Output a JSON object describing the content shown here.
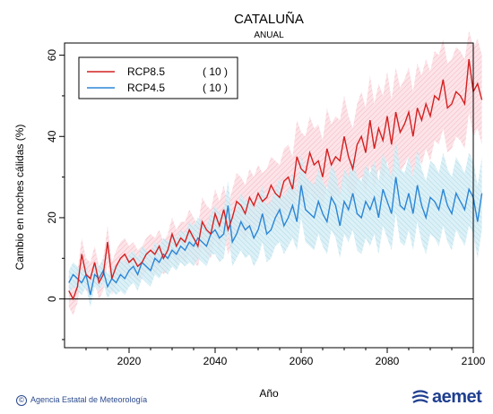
{
  "chart_data": {
    "type": "line",
    "title": "CATALUÑA",
    "subtitle": "ANUAL",
    "xlabel": "Año",
    "ylabel": "Cambio en noches cálidas (%)",
    "xlim": [
      2005,
      2100
    ],
    "ylim": [
      -12,
      63
    ],
    "xticks": [
      2020,
      2040,
      2060,
      2080,
      2100
    ],
    "yticks": [
      0,
      20,
      40,
      60
    ],
    "zero_line": true,
    "legend_position": "top-left",
    "x_start": 2006,
    "series": [
      {
        "name": "RCP8.5",
        "count_label": "( 10 )",
        "color": "#d42020",
        "band_color": "#f7c6cf",
        "values": [
          2,
          0,
          3,
          11,
          6,
          5,
          9,
          4,
          6,
          14,
          5,
          8,
          10,
          11,
          9,
          10,
          8,
          9,
          11,
          12,
          11,
          13,
          10,
          12,
          16,
          13,
          15,
          14,
          17,
          15,
          13,
          19,
          17,
          16,
          21,
          18,
          22,
          17,
          20,
          24,
          23,
          21,
          25,
          23,
          26,
          24,
          25,
          28,
          26,
          25,
          29,
          30,
          27,
          35,
          32,
          31,
          36,
          33,
          34,
          30,
          37,
          33,
          35,
          34,
          40,
          35,
          32,
          38,
          40,
          36,
          44,
          37,
          42,
          39,
          45,
          38,
          46,
          41,
          43,
          46,
          40,
          47,
          44,
          48,
          45,
          50,
          49,
          54,
          47,
          48,
          51,
          50,
          48,
          59,
          51,
          53,
          49
        ],
        "upper": [
          6,
          4,
          7,
          15,
          10,
          9,
          13,
          8,
          10,
          18,
          9,
          12,
          14,
          15,
          13,
          14,
          12,
          13,
          15,
          16,
          15,
          17,
          14,
          16,
          20,
          17,
          19,
          19,
          22,
          20,
          18,
          25,
          23,
          22,
          27,
          24,
          28,
          23,
          27,
          31,
          30,
          28,
          32,
          30,
          33,
          31,
          32,
          35,
          34,
          33,
          37,
          38,
          35,
          44,
          41,
          40,
          45,
          42,
          43,
          39,
          47,
          43,
          45,
          44,
          50,
          45,
          42,
          48,
          51,
          47,
          55,
          48,
          53,
          50,
          56,
          49,
          57,
          52,
          54,
          57,
          51,
          58,
          55,
          59,
          56,
          61,
          60,
          64,
          58,
          59,
          62,
          61,
          59,
          66,
          62,
          64,
          60
        ],
        "lower": [
          -2,
          -4,
          -1,
          6,
          2,
          1,
          4,
          0,
          2,
          9,
          1,
          4,
          6,
          6,
          5,
          6,
          4,
          5,
          7,
          7,
          6,
          8,
          6,
          7,
          11,
          8,
          10,
          9,
          11,
          9,
          8,
          13,
          11,
          10,
          15,
          12,
          16,
          11,
          13,
          17,
          16,
          14,
          18,
          16,
          19,
          17,
          18,
          21,
          19,
          18,
          21,
          22,
          20,
          26,
          24,
          23,
          27,
          24,
          25,
          22,
          28,
          24,
          26,
          25,
          30,
          26,
          23,
          29,
          30,
          26,
          33,
          27,
          32,
          29,
          34,
          28,
          35,
          31,
          33,
          35,
          30,
          36,
          33,
          37,
          34,
          39,
          38,
          42,
          36,
          37,
          40,
          39,
          37,
          46,
          40,
          42,
          38
        ]
      },
      {
        "name": "RCP4.5",
        "count_label": "( 10 )",
        "color": "#2b86d6",
        "band_color": "#bfe3ee",
        "values": [
          4,
          6,
          5,
          4,
          6,
          1,
          6,
          5,
          7,
          3,
          5,
          4,
          6,
          5,
          7,
          8,
          6,
          9,
          8,
          7,
          10,
          9,
          11,
          10,
          12,
          11,
          13,
          12,
          14,
          13,
          15,
          14,
          13,
          16,
          17,
          15,
          16,
          23,
          14,
          16,
          19,
          17,
          18,
          15,
          17,
          21,
          16,
          17,
          20,
          22,
          18,
          20,
          23,
          19,
          28,
          22,
          21,
          20,
          24,
          21,
          19,
          25,
          23,
          18,
          24,
          22,
          26,
          21,
          20,
          24,
          22,
          25,
          20,
          27,
          24,
          21,
          30,
          23,
          22,
          26,
          21,
          28,
          23,
          20,
          25,
          24,
          22,
          27,
          23,
          21,
          26,
          24,
          22,
          27,
          25,
          19,
          26
        ],
        "upper": [
          7,
          9,
          8,
          7,
          9,
          4,
          9,
          8,
          10,
          6,
          8,
          8,
          10,
          9,
          11,
          12,
          10,
          13,
          12,
          11,
          14,
          13,
          15,
          14,
          16,
          15,
          17,
          16,
          19,
          18,
          20,
          19,
          18,
          21,
          23,
          21,
          22,
          29,
          20,
          22,
          26,
          24,
          25,
          22,
          24,
          28,
          23,
          24,
          27,
          30,
          25,
          27,
          31,
          26,
          36,
          30,
          29,
          28,
          32,
          29,
          27,
          33,
          31,
          26,
          32,
          30,
          35,
          30,
          29,
          33,
          31,
          34,
          29,
          36,
          33,
          30,
          39,
          32,
          31,
          35,
          30,
          37,
          32,
          29,
          34,
          33,
          31,
          36,
          32,
          30,
          35,
          33,
          31,
          36,
          34,
          28,
          35
        ],
        "lower": [
          1,
          3,
          2,
          1,
          3,
          -2,
          3,
          2,
          4,
          0,
          2,
          1,
          2,
          1,
          3,
          4,
          2,
          5,
          4,
          3,
          6,
          5,
          7,
          6,
          8,
          7,
          9,
          8,
          9,
          8,
          10,
          9,
          8,
          11,
          11,
          9,
          10,
          17,
          8,
          10,
          12,
          10,
          11,
          8,
          10,
          14,
          9,
          10,
          13,
          14,
          11,
          13,
          15,
          12,
          20,
          14,
          13,
          12,
          16,
          13,
          11,
          17,
          15,
          10,
          16,
          14,
          17,
          12,
          11,
          15,
          13,
          16,
          11,
          18,
          15,
          12,
          21,
          14,
          13,
          17,
          12,
          19,
          14,
          11,
          16,
          15,
          13,
          18,
          14,
          12,
          17,
          15,
          13,
          18,
          16,
          10,
          17
        ]
      }
    ]
  },
  "footer": {
    "copyright_symbol": "©",
    "agency": "Agencia Estatal de Meteorología",
    "logo_text": "aemet",
    "logo_icon": "aemet-swirl-icon"
  }
}
